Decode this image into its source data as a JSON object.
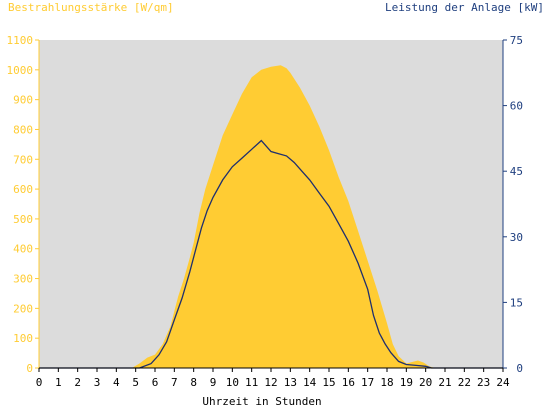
{
  "colors": {
    "plot_background": "#dcdcdc",
    "irradiance": "#ffcc33",
    "power": "#1f2f6e",
    "left_axis": "#ffcc33",
    "right_axis": "#1f3f7f",
    "x_axis_text": "#000000"
  },
  "chart_data": {
    "type": "area",
    "title": "",
    "xlabel": "Uhrzeit in Stunden",
    "ylabel_left": "Bestrahlungsstärke [W/qm]",
    "ylabel_right": "Leistung der Anlage [kW]",
    "xlim": [
      0,
      24
    ],
    "ylim_left": [
      0,
      1100
    ],
    "ylim_right": [
      0,
      75
    ],
    "x_ticks": [
      "0",
      "1",
      "2",
      "3",
      "4",
      "5",
      "6",
      "7",
      "8",
      "9",
      "10",
      "11",
      "12",
      "13",
      "14",
      "15",
      "16",
      "17",
      "18",
      "19",
      "20",
      "21",
      "22",
      "23",
      "24"
    ],
    "y_left_ticks": [
      "0",
      "100",
      "200",
      "300",
      "400",
      "500",
      "600",
      "700",
      "800",
      "900",
      "1000",
      "1100"
    ],
    "y_right_ticks": [
      "0",
      "15",
      "30",
      "45",
      "60",
      "75"
    ],
    "grid": false,
    "series": [
      {
        "name": "Bestrahlungsstärke [W/qm]",
        "axis": "left",
        "style": "area",
        "x": [
          0,
          4.8,
          5.2,
          5.6,
          6.0,
          6.4,
          6.8,
          7.0,
          7.2,
          7.5,
          7.8,
          8.0,
          8.3,
          8.6,
          9.0,
          9.5,
          10.0,
          10.5,
          11.0,
          11.5,
          12.0,
          12.5,
          12.8,
          13.0,
          13.5,
          14.0,
          14.5,
          15.0,
          15.5,
          16.0,
          16.5,
          17.0,
          17.5,
          18.0,
          18.3,
          18.6,
          19.0,
          19.3,
          19.6,
          19.9,
          20.2,
          20.5,
          24
        ],
        "y": [
          0,
          0,
          15,
          35,
          45,
          80,
          140,
          190,
          240,
          300,
          370,
          420,
          520,
          600,
          680,
          780,
          850,
          920,
          975,
          1000,
          1010,
          1015,
          1005,
          990,
          940,
          880,
          810,
          730,
          640,
          560,
          460,
          360,
          260,
          150,
          80,
          40,
          15,
          20,
          25,
          18,
          5,
          0,
          0
        ]
      },
      {
        "name": "Leistung der Anlage [kW]",
        "axis": "right",
        "style": "line",
        "x": [
          0,
          5.2,
          5.8,
          6.2,
          6.6,
          7.0,
          7.4,
          7.8,
          8.1,
          8.4,
          8.7,
          9.0,
          9.5,
          10.0,
          10.5,
          11.0,
          11.5,
          12.0,
          12.4,
          12.8,
          13.2,
          13.6,
          14.0,
          14.5,
          15.0,
          15.5,
          16.0,
          16.5,
          17.0,
          17.3,
          17.6,
          17.9,
          18.2,
          18.6,
          19.0,
          19.5,
          20.0,
          20.3,
          24
        ],
        "y": [
          0,
          0,
          1,
          3,
          6,
          11,
          16,
          22,
          27,
          32,
          36,
          39,
          43,
          46,
          48,
          50,
          52,
          49.5,
          49,
          48.5,
          47,
          45,
          43,
          40,
          37,
          33,
          29,
          24,
          18,
          12,
          8,
          5.5,
          3.5,
          1.5,
          0.8,
          0.6,
          0.4,
          0,
          0
        ]
      }
    ]
  }
}
